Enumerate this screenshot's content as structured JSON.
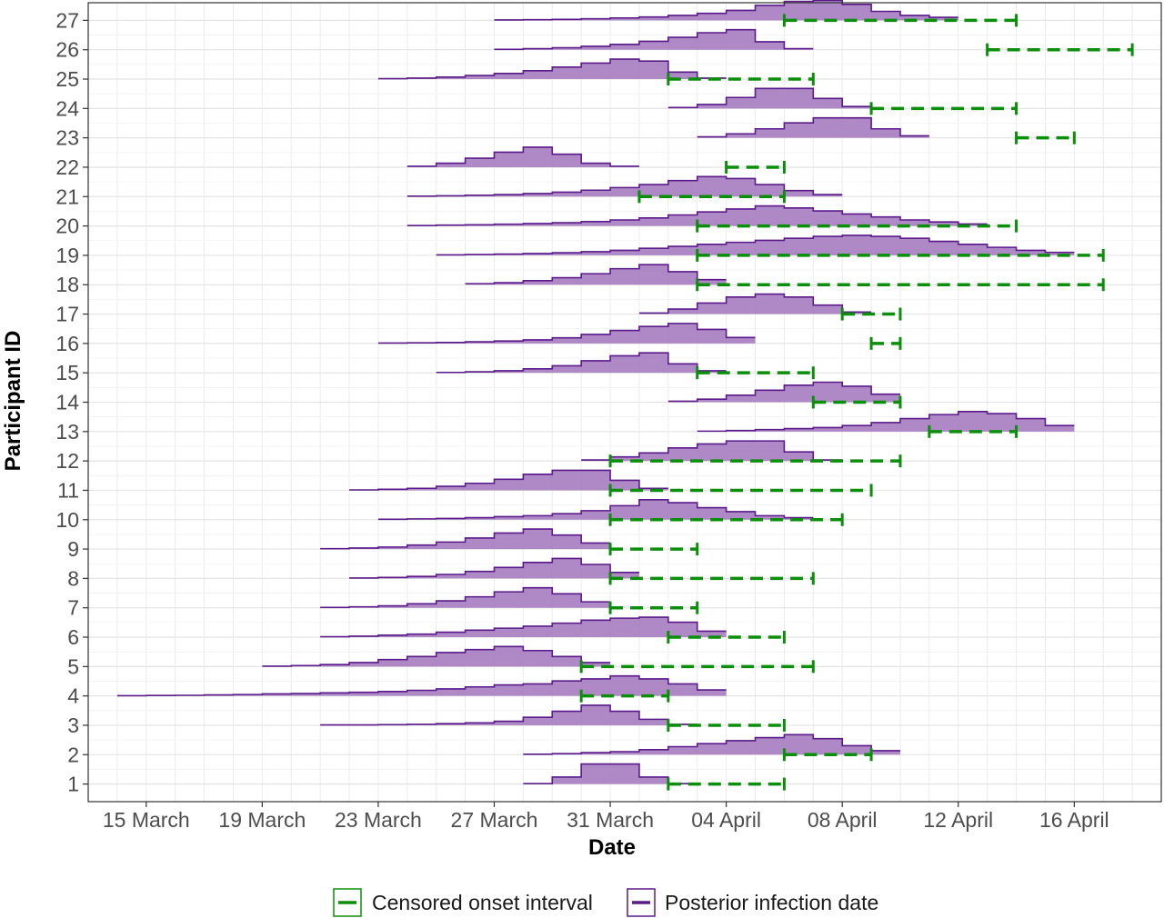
{
  "chart_data": {
    "type": "interval-distribution",
    "xlabel": "Date",
    "ylabel": "Participant ID",
    "x_ticks": [
      {
        "date": "2020-03-15",
        "label": "15 March"
      },
      {
        "date": "2020-03-19",
        "label": "19 March"
      },
      {
        "date": "2020-03-23",
        "label": "23 March"
      },
      {
        "date": "2020-03-27",
        "label": "27 March"
      },
      {
        "date": "2020-03-31",
        "label": "31 March"
      },
      {
        "date": "2020-04-04",
        "label": "04 April"
      },
      {
        "date": "2020-04-08",
        "label": "08 April"
      },
      {
        "date": "2020-04-12",
        "label": "12 April"
      },
      {
        "date": "2020-04-16",
        "label": "16 April"
      }
    ],
    "x_range": [
      "2020-03-13",
      "2020-04-19"
    ],
    "y_ticks": [
      1,
      2,
      3,
      4,
      5,
      6,
      7,
      8,
      9,
      10,
      11,
      12,
      13,
      14,
      15,
      16,
      17,
      18,
      19,
      20,
      21,
      22,
      23,
      24,
      25,
      26,
      27
    ],
    "y_range": [
      0.4,
      27.6
    ],
    "grid": true,
    "legend": {
      "position": "bottom",
      "items": [
        {
          "label": "Censored onset interval",
          "color": "#0b8f0b",
          "style": "dashed"
        },
        {
          "label": "Posterior infection date",
          "color": "#5a1a8a",
          "fill": "#a57cc0"
        }
      ]
    },
    "censored_intervals": [
      {
        "participant": 1,
        "start": "2020-04-02",
        "end": "2020-04-06"
      },
      {
        "participant": 2,
        "start": "2020-04-06",
        "end": "2020-04-09"
      },
      {
        "participant": 3,
        "start": "2020-04-02",
        "end": "2020-04-06"
      },
      {
        "participant": 4,
        "start": "2020-03-30",
        "end": "2020-04-02"
      },
      {
        "participant": 5,
        "start": "2020-03-30",
        "end": "2020-04-07"
      },
      {
        "participant": 6,
        "start": "2020-04-02",
        "end": "2020-04-06"
      },
      {
        "participant": 7,
        "start": "2020-03-31",
        "end": "2020-04-03"
      },
      {
        "participant": 8,
        "start": "2020-03-31",
        "end": "2020-04-07"
      },
      {
        "participant": 9,
        "start": "2020-03-31",
        "end": "2020-04-03"
      },
      {
        "participant": 10,
        "start": "2020-03-31",
        "end": "2020-04-08"
      },
      {
        "participant": 11,
        "start": "2020-03-31",
        "end": "2020-04-09"
      },
      {
        "participant": 12,
        "start": "2020-03-31",
        "end": "2020-04-10"
      },
      {
        "participant": 13,
        "start": "2020-04-11",
        "end": "2020-04-14"
      },
      {
        "participant": 14,
        "start": "2020-04-07",
        "end": "2020-04-10"
      },
      {
        "participant": 15,
        "start": "2020-04-03",
        "end": "2020-04-07"
      },
      {
        "participant": 16,
        "start": "2020-04-09",
        "end": "2020-04-10"
      },
      {
        "participant": 17,
        "start": "2020-04-08",
        "end": "2020-04-10"
      },
      {
        "participant": 18,
        "start": "2020-04-03",
        "end": "2020-04-17"
      },
      {
        "participant": 19,
        "start": "2020-04-03",
        "end": "2020-04-17"
      },
      {
        "participant": 20,
        "start": "2020-04-03",
        "end": "2020-04-14"
      },
      {
        "participant": 21,
        "start": "2020-04-01",
        "end": "2020-04-06"
      },
      {
        "participant": 22,
        "start": "2020-04-04",
        "end": "2020-04-06"
      },
      {
        "participant": 23,
        "start": "2020-04-14",
        "end": "2020-04-16"
      },
      {
        "participant": 24,
        "start": "2020-04-09",
        "end": "2020-04-14"
      },
      {
        "participant": 25,
        "start": "2020-04-02",
        "end": "2020-04-07"
      },
      {
        "participant": 26,
        "start": "2020-04-13",
        "end": "2020-04-18"
      },
      {
        "participant": 27,
        "start": "2020-04-06",
        "end": "2020-04-14"
      }
    ],
    "posterior_infection": [
      {
        "participant": 1,
        "start": "2020-03-28",
        "weights": [
          0.02,
          0.35,
          1.0,
          1.0,
          0.35,
          0.02
        ]
      },
      {
        "participant": 2,
        "start": "2020-03-28",
        "weights": [
          0.02,
          0.05,
          0.1,
          0.15,
          0.25,
          0.4,
          0.55,
          0.7,
          0.85,
          1.0,
          0.8,
          0.45,
          0.2
        ]
      },
      {
        "participant": 3,
        "start": "2020-03-21",
        "weights": [
          0.02,
          0.02,
          0.03,
          0.05,
          0.08,
          0.12,
          0.2,
          0.4,
          0.7,
          1.0,
          0.7,
          0.3,
          0.05
        ]
      },
      {
        "participant": 4,
        "start": "2020-03-14",
        "weights": [
          0.01,
          0.02,
          0.03,
          0.05,
          0.07,
          0.1,
          0.12,
          0.15,
          0.18,
          0.22,
          0.28,
          0.35,
          0.45,
          0.55,
          0.6,
          0.75,
          0.85,
          1.0,
          0.85,
          0.6,
          0.3
        ]
      },
      {
        "participant": 5,
        "start": "2020-03-19",
        "weights": [
          0.02,
          0.05,
          0.1,
          0.2,
          0.35,
          0.5,
          0.7,
          0.85,
          1.0,
          0.8,
          0.5,
          0.2
        ]
      },
      {
        "participant": 6,
        "start": "2020-03-21",
        "weights": [
          0.02,
          0.05,
          0.1,
          0.15,
          0.25,
          0.35,
          0.45,
          0.55,
          0.7,
          0.85,
          0.95,
          1.0,
          0.75,
          0.3
        ]
      },
      {
        "participant": 7,
        "start": "2020-03-21",
        "weights": [
          0.02,
          0.05,
          0.1,
          0.2,
          0.35,
          0.55,
          0.8,
          1.0,
          0.7,
          0.3
        ]
      },
      {
        "participant": 8,
        "start": "2020-03-22",
        "weights": [
          0.02,
          0.05,
          0.1,
          0.2,
          0.35,
          0.55,
          0.8,
          1.0,
          0.7,
          0.3
        ]
      },
      {
        "participant": 9,
        "start": "2020-03-21",
        "weights": [
          0.02,
          0.05,
          0.1,
          0.2,
          0.35,
          0.55,
          0.8,
          1.0,
          0.7,
          0.3
        ]
      },
      {
        "participant": 10,
        "start": "2020-03-23",
        "weights": [
          0.02,
          0.04,
          0.06,
          0.1,
          0.15,
          0.2,
          0.3,
          0.45,
          0.7,
          1.0,
          0.85,
          0.6,
          0.4,
          0.2,
          0.1
        ]
      },
      {
        "participant": 11,
        "start": "2020-03-22",
        "weights": [
          0.02,
          0.05,
          0.1,
          0.2,
          0.35,
          0.55,
          0.8,
          1.0,
          1.0,
          0.5,
          0.1
        ]
      },
      {
        "participant": 12,
        "start": "2020-03-30",
        "weights": [
          0.05,
          0.2,
          0.4,
          0.65,
          0.85,
          1.0,
          1.0,
          0.45,
          0.05
        ]
      },
      {
        "participant": 13,
        "start": "2020-04-03",
        "weights": [
          0.02,
          0.05,
          0.1,
          0.15,
          0.2,
          0.3,
          0.45,
          0.65,
          0.85,
          1.0,
          0.9,
          0.65,
          0.3
        ]
      },
      {
        "participant": 14,
        "start": "2020-04-02",
        "weights": [
          0.05,
          0.15,
          0.35,
          0.6,
          0.85,
          1.0,
          0.8,
          0.4
        ]
      },
      {
        "participant": 15,
        "start": "2020-03-25",
        "weights": [
          0.02,
          0.05,
          0.1,
          0.2,
          0.35,
          0.6,
          0.85,
          1.0,
          0.45,
          0.1
        ]
      },
      {
        "participant": 16,
        "start": "2020-03-23",
        "weights": [
          0.02,
          0.03,
          0.05,
          0.08,
          0.12,
          0.18,
          0.28,
          0.45,
          0.65,
          0.85,
          1.0,
          0.7,
          0.3
        ]
      },
      {
        "participant": 17,
        "start": "2020-04-01",
        "weights": [
          0.05,
          0.25,
          0.55,
          0.85,
          1.0,
          0.85,
          0.45,
          0.1
        ]
      },
      {
        "participant": 18,
        "start": "2020-03-26",
        "weights": [
          0.05,
          0.1,
          0.2,
          0.35,
          0.55,
          0.8,
          1.0,
          0.65,
          0.25
        ]
      },
      {
        "participant": 19,
        "start": "2020-03-25",
        "weights": [
          0.02,
          0.04,
          0.06,
          0.09,
          0.13,
          0.18,
          0.25,
          0.35,
          0.45,
          0.55,
          0.65,
          0.75,
          0.85,
          0.95,
          1.0,
          0.95,
          0.85,
          0.7,
          0.55,
          0.4,
          0.25,
          0.15
        ]
      },
      {
        "participant": 20,
        "start": "2020-03-24",
        "weights": [
          0.02,
          0.04,
          0.06,
          0.09,
          0.12,
          0.16,
          0.22,
          0.3,
          0.4,
          0.55,
          0.7,
          0.85,
          1.0,
          0.9,
          0.75,
          0.6,
          0.45,
          0.3,
          0.2,
          0.1
        ]
      },
      {
        "participant": 21,
        "start": "2020-03-24",
        "weights": [
          0.02,
          0.04,
          0.07,
          0.1,
          0.15,
          0.22,
          0.32,
          0.45,
          0.6,
          0.8,
          1.0,
          0.9,
          0.6,
          0.3,
          0.1
        ]
      },
      {
        "participant": 22,
        "start": "2020-03-24",
        "weights": [
          0.05,
          0.2,
          0.45,
          0.75,
          1.0,
          0.65,
          0.2,
          0.05
        ]
      },
      {
        "participant": 23,
        "start": "2020-04-03",
        "weights": [
          0.05,
          0.2,
          0.45,
          0.75,
          1.0,
          1.0,
          0.45,
          0.1
        ]
      },
      {
        "participant": 24,
        "start": "2020-04-02",
        "weights": [
          0.05,
          0.2,
          0.55,
          1.0,
          1.0,
          0.5,
          0.1
        ]
      },
      {
        "participant": 25,
        "start": "2020-03-23",
        "weights": [
          0.02,
          0.05,
          0.1,
          0.18,
          0.28,
          0.42,
          0.6,
          0.8,
          1.0,
          0.9,
          0.35,
          0.05
        ]
      },
      {
        "participant": 26,
        "start": "2020-03-27",
        "weights": [
          0.02,
          0.05,
          0.1,
          0.17,
          0.27,
          0.42,
          0.62,
          0.85,
          1.0,
          0.4,
          0.05
        ]
      },
      {
        "participant": 27,
        "start": "2020-03-27",
        "weights": [
          0.02,
          0.03,
          0.05,
          0.08,
          0.12,
          0.17,
          0.25,
          0.35,
          0.5,
          0.75,
          0.95,
          1.0,
          0.8,
          0.45,
          0.25,
          0.15
        ]
      }
    ]
  }
}
